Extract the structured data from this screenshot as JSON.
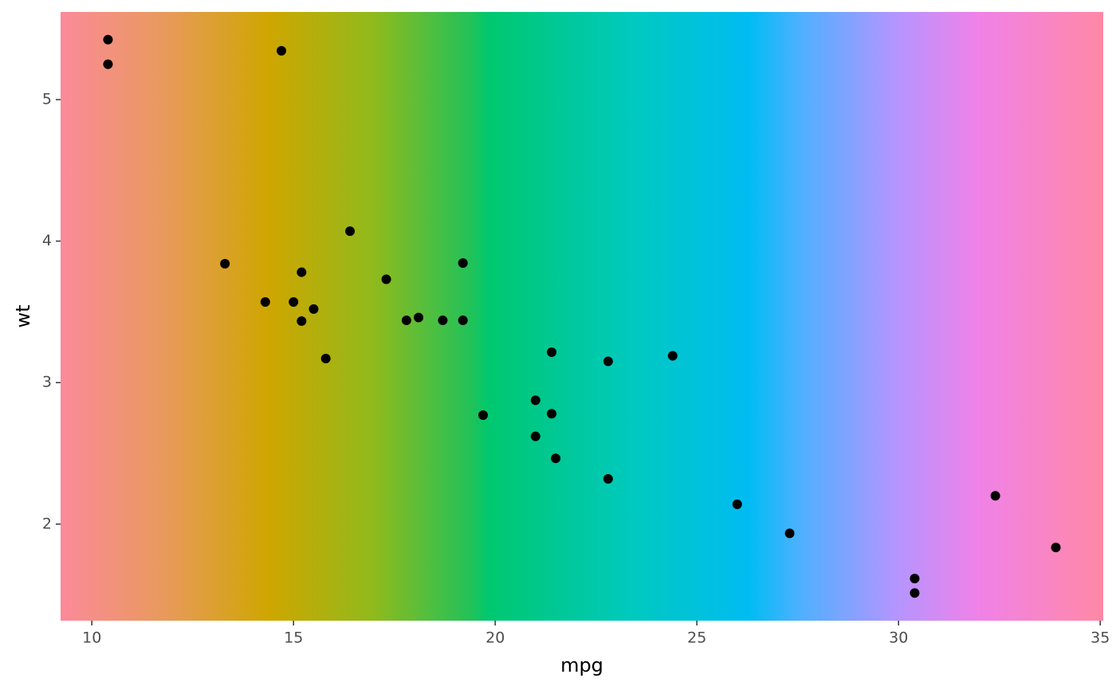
{
  "chart_data": {
    "type": "scatter",
    "x_label": "mpg",
    "y_label": "wt",
    "x": [
      21,
      21,
      22.8,
      21.4,
      18.7,
      18.1,
      14.3,
      24.4,
      22.8,
      19.2,
      17.8,
      16.4,
      17.3,
      15.2,
      10.4,
      10.4,
      14.7,
      32.4,
      30.4,
      33.9,
      21.5,
      15.5,
      15.2,
      13.3,
      19.2,
      27.3,
      26,
      30.4,
      15.8,
      19.7,
      15,
      21.4
    ],
    "values": [
      2.62,
      2.875,
      2.32,
      3.215,
      3.44,
      3.46,
      3.57,
      3.19,
      3.15,
      3.44,
      3.44,
      4.07,
      3.73,
      3.78,
      5.25,
      5.424,
      5.345,
      2.2,
      1.615,
      1.835,
      2.465,
      3.52,
      3.435,
      3.84,
      3.845,
      1.935,
      2.14,
      1.513,
      3.17,
      2.77,
      3.57,
      2.78
    ],
    "color": "#000000",
    "xlim": [
      9.225,
      35.075
    ],
    "xticks": [
      10,
      15,
      20,
      25,
      30,
      35
    ],
    "ylim": [
      1.31745,
      5.61955
    ],
    "yticks": [
      2,
      3,
      4,
      5
    ],
    "grid": false
  }
}
